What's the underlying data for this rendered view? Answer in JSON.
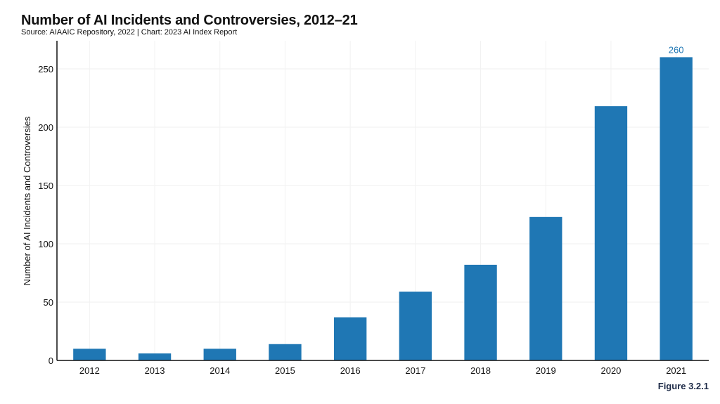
{
  "chart_data": {
    "type": "bar",
    "title": "Number of AI Incidents and Controversies, 2012–21",
    "subtitle": "Source: AIAAIC Repository, 2022 | Chart: 2023 AI Index Report",
    "xlabel": "",
    "ylabel": "Number of AI Incidents and Controversies",
    "categories": [
      "2012",
      "2013",
      "2014",
      "2015",
      "2016",
      "2017",
      "2018",
      "2019",
      "2020",
      "2021"
    ],
    "values": [
      10,
      6,
      10,
      14,
      37,
      59,
      82,
      123,
      218,
      260
    ],
    "ylim": [
      0,
      275
    ],
    "yticks": [
      0,
      50,
      100,
      150,
      200,
      250
    ],
    "grid": true,
    "bar_color": "#1f77b4",
    "data_labels": [
      {
        "category": "2021",
        "text": "260"
      }
    ],
    "figure_label": "Figure 3.2.1"
  }
}
